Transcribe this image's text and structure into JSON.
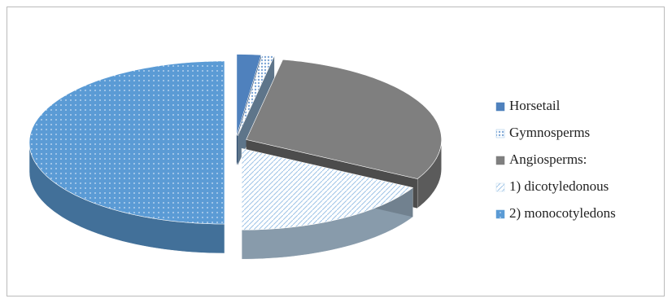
{
  "chart_data": {
    "type": "pie3d",
    "categories": [
      "Horsetail",
      "Gymnosperms",
      "Angiosperms:",
      "1) dicotyledonous",
      "2) monocotyledons"
    ],
    "values": [
      2,
      1,
      30,
      17,
      50
    ],
    "colors": [
      "#4f81bd",
      "#9dc3e6",
      "#7f7f7f",
      "#bdd7ee",
      "#5b9bd5"
    ],
    "legend": "right"
  }
}
